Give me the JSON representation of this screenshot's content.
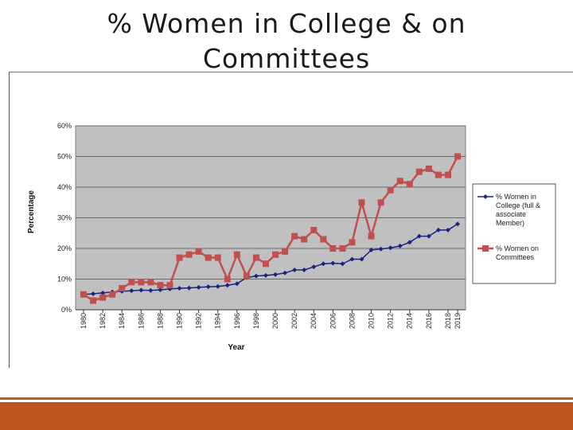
{
  "slide": {
    "title_line1": "% Women in College & on",
    "title_line2": "Committees"
  },
  "colors": {
    "plot_bg": "#c0c0c0",
    "college": "#1a237e",
    "committees": "#c0504d",
    "footer": "#c0561f"
  },
  "chart_data": {
    "type": "line",
    "title": "",
    "xlabel": "Year",
    "ylabel": "Percentage",
    "ylim": [
      0,
      60
    ],
    "yticks": [
      0,
      10,
      20,
      30,
      40,
      50,
      60
    ],
    "ytick_labels": [
      "0%",
      "10%",
      "20%",
      "30%",
      "40%",
      "50%",
      "60%"
    ],
    "xtick_labels": [
      "1980",
      "1982",
      "1984",
      "1986",
      "1988",
      "1990",
      "1992",
      "1994",
      "1996",
      "1998",
      "2000",
      "2002",
      "2004",
      "2006",
      "2008",
      "2010",
      "2012",
      "2014",
      "2016",
      "2018",
      "2019"
    ],
    "x": [
      1980,
      1981,
      1982,
      1983,
      1984,
      1985,
      1986,
      1987,
      1988,
      1989,
      1990,
      1991,
      1992,
      1993,
      1994,
      1995,
      1996,
      1997,
      1998,
      1999,
      2000,
      2001,
      2002,
      2003,
      2004,
      2005,
      2006,
      2007,
      2008,
      2009,
      2010,
      2011,
      2012,
      2013,
      2014,
      2015,
      2016,
      2017,
      2018,
      2019
    ],
    "grid": true,
    "legend_position": "right",
    "series": [
      {
        "name": "% Women in College (full & associate Member)",
        "legend_lines": [
          "% Women in",
          "College (full &",
          "associate",
          "Member)"
        ],
        "marker": "diamond",
        "values": [
          5,
          5.2,
          5.5,
          5.8,
          6,
          6.2,
          6.4,
          6.3,
          6.5,
          6.8,
          7,
          7.1,
          7.3,
          7.5,
          7.6,
          8,
          8.5,
          10.5,
          11,
          11.2,
          11.5,
          12,
          13,
          13,
          14,
          15,
          15.2,
          15,
          16.5,
          16.5,
          19.5,
          19.8,
          20.2,
          20.8,
          22,
          24,
          24,
          26,
          26,
          28
        ]
      },
      {
        "name": "% Women on Committees",
        "legend_lines": [
          "% Women on",
          "Committees"
        ],
        "marker": "square",
        "values": [
          5,
          3,
          4,
          5,
          7,
          9,
          9,
          9,
          8,
          8,
          17,
          18,
          19,
          17,
          17,
          10,
          18,
          11,
          17,
          15,
          18,
          19,
          24,
          23,
          26,
          23,
          20,
          20,
          22,
          35,
          24,
          35,
          39,
          42,
          41,
          45,
          46,
          44,
          44,
          50
        ]
      }
    ]
  }
}
